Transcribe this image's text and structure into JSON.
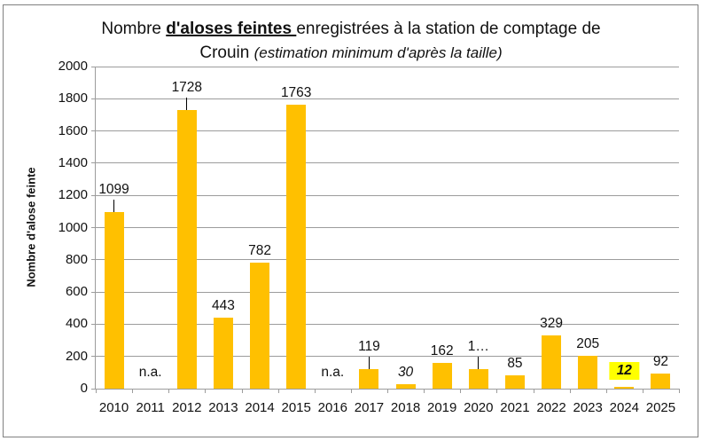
{
  "title": {
    "part1": "Nombre ",
    "part2": "d'aloses feintes ",
    "part3": "enregistrées à la station de comptage de",
    "line2_normal": "Crouin ",
    "line2_italic": "(estimation minimum d'après la taille)"
  },
  "chart_data": {
    "type": "bar",
    "title": "Nombre d'aloses feintes enregistrées à la station de comptage de Crouin (estimation minimum d'après la taille)",
    "xlabel": "",
    "ylabel": "Nombre d'alose feinte",
    "ylim": [
      0,
      2000
    ],
    "ytick_step": 200,
    "yticks": [
      "0",
      "200",
      "400",
      "600",
      "800",
      "1000",
      "1200",
      "1400",
      "1600",
      "1800",
      "2000"
    ],
    "grid": true,
    "legend": false,
    "categories": [
      "2010",
      "2011",
      "2012",
      "2013",
      "2014",
      "2015",
      "2016",
      "2017",
      "2018",
      "2019",
      "2020",
      "2021",
      "2022",
      "2023",
      "2024",
      "2025"
    ],
    "bars": [
      {
        "year": "2010",
        "value": 1099,
        "label": "1099",
        "leader": true
      },
      {
        "year": "2011",
        "value": null,
        "label": "n.a."
      },
      {
        "year": "2012",
        "value": 1728,
        "label": "1728",
        "leader": true
      },
      {
        "year": "2013",
        "value": 443,
        "label": "443"
      },
      {
        "year": "2014",
        "value": 782,
        "label": "782"
      },
      {
        "year": "2015",
        "value": 1763,
        "label": "1763"
      },
      {
        "year": "2016",
        "value": null,
        "label": "n.a."
      },
      {
        "year": "2017",
        "value": 119,
        "label": "119",
        "leader": true
      },
      {
        "year": "2018",
        "value": 30,
        "label": "30",
        "italic": true
      },
      {
        "year": "2019",
        "value": 162,
        "label": "162"
      },
      {
        "year": "2020",
        "value": 120,
        "label": "1…",
        "leader": true
      },
      {
        "year": "2021",
        "value": 85,
        "label": "85"
      },
      {
        "year": "2022",
        "value": 329,
        "label": "329"
      },
      {
        "year": "2023",
        "value": 205,
        "label": "205"
      },
      {
        "year": "2024",
        "value": 12,
        "label": "12",
        "italic": true,
        "highlight": true
      },
      {
        "year": "2025",
        "value": 92,
        "label": "92"
      }
    ],
    "colors": {
      "bar": "#FFC000",
      "label_highlight": "#FFFF00",
      "gridline": "#9c9c9c",
      "axis": "#9c9c9c",
      "leader_line": "#000000",
      "text": "#111111",
      "frame_border": "#808080"
    }
  }
}
